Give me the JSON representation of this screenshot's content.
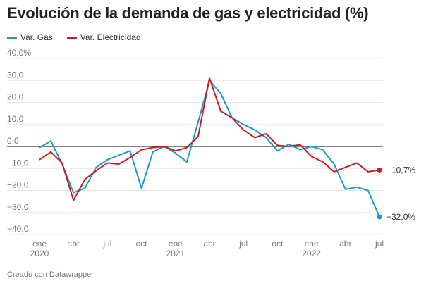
{
  "chart_data": {
    "type": "line",
    "title": "Evolución de la demanda de gas y electricidad (%)",
    "ylim": [
      -40,
      40
    ],
    "yticks": [
      "40,0%",
      "30,0",
      "20,0",
      "10,0",
      "0,0",
      "−10,0",
      "−20,0",
      "−30,0",
      "−40,0"
    ],
    "ytick_values": [
      40,
      30,
      20,
      10,
      0,
      -10,
      -20,
      -30,
      -40
    ],
    "grid": true,
    "legend_position": "top-left",
    "xticks": [
      {
        "index": 0,
        "label": "ene",
        "year": "2020"
      },
      {
        "index": 3,
        "label": "abr"
      },
      {
        "index": 6,
        "label": "jul"
      },
      {
        "index": 9,
        "label": "oct"
      },
      {
        "index": 12,
        "label": "ene",
        "year": "2021"
      },
      {
        "index": 15,
        "label": "abr"
      },
      {
        "index": 18,
        "label": "jul"
      },
      {
        "index": 21,
        "label": "oct"
      },
      {
        "index": 24,
        "label": "ene",
        "year": "2022"
      },
      {
        "index": 27,
        "label": "abr"
      },
      {
        "index": 30,
        "label": "jul"
      }
    ],
    "x_range": "ene 2020 – jul 2022 (monthly)",
    "series": [
      {
        "name": "Var. Gas",
        "color": "#1a9bc7",
        "end_label": "−32,0%",
        "values": [
          -0.5,
          2.5,
          -8,
          -21,
          -19,
          -9.5,
          -6,
          -4,
          -2,
          -19,
          -2.5,
          0,
          -3,
          -7,
          11,
          30,
          24,
          13,
          10,
          7.5,
          4,
          -2,
          1,
          -1.5,
          0,
          -1.5,
          -8,
          -19.5,
          -18.5,
          -20,
          -32
        ]
      },
      {
        "name": "Var. Electricidad",
        "color": "#c71e1d",
        "end_label": "−10,7%",
        "values": [
          -6,
          -2.5,
          -7.5,
          -24.5,
          -15,
          -11,
          -7.5,
          -8,
          -5,
          -1.5,
          -0.5,
          0,
          -2,
          -0.5,
          4.5,
          31,
          16,
          13,
          7.5,
          4,
          5.8,
          0.5,
          0,
          0.8,
          -4.5,
          -7,
          -11.5,
          -9.5,
          -7.5,
          -11.5,
          -10.7
        ]
      }
    ]
  },
  "footer": "Creado con Datawrapper"
}
